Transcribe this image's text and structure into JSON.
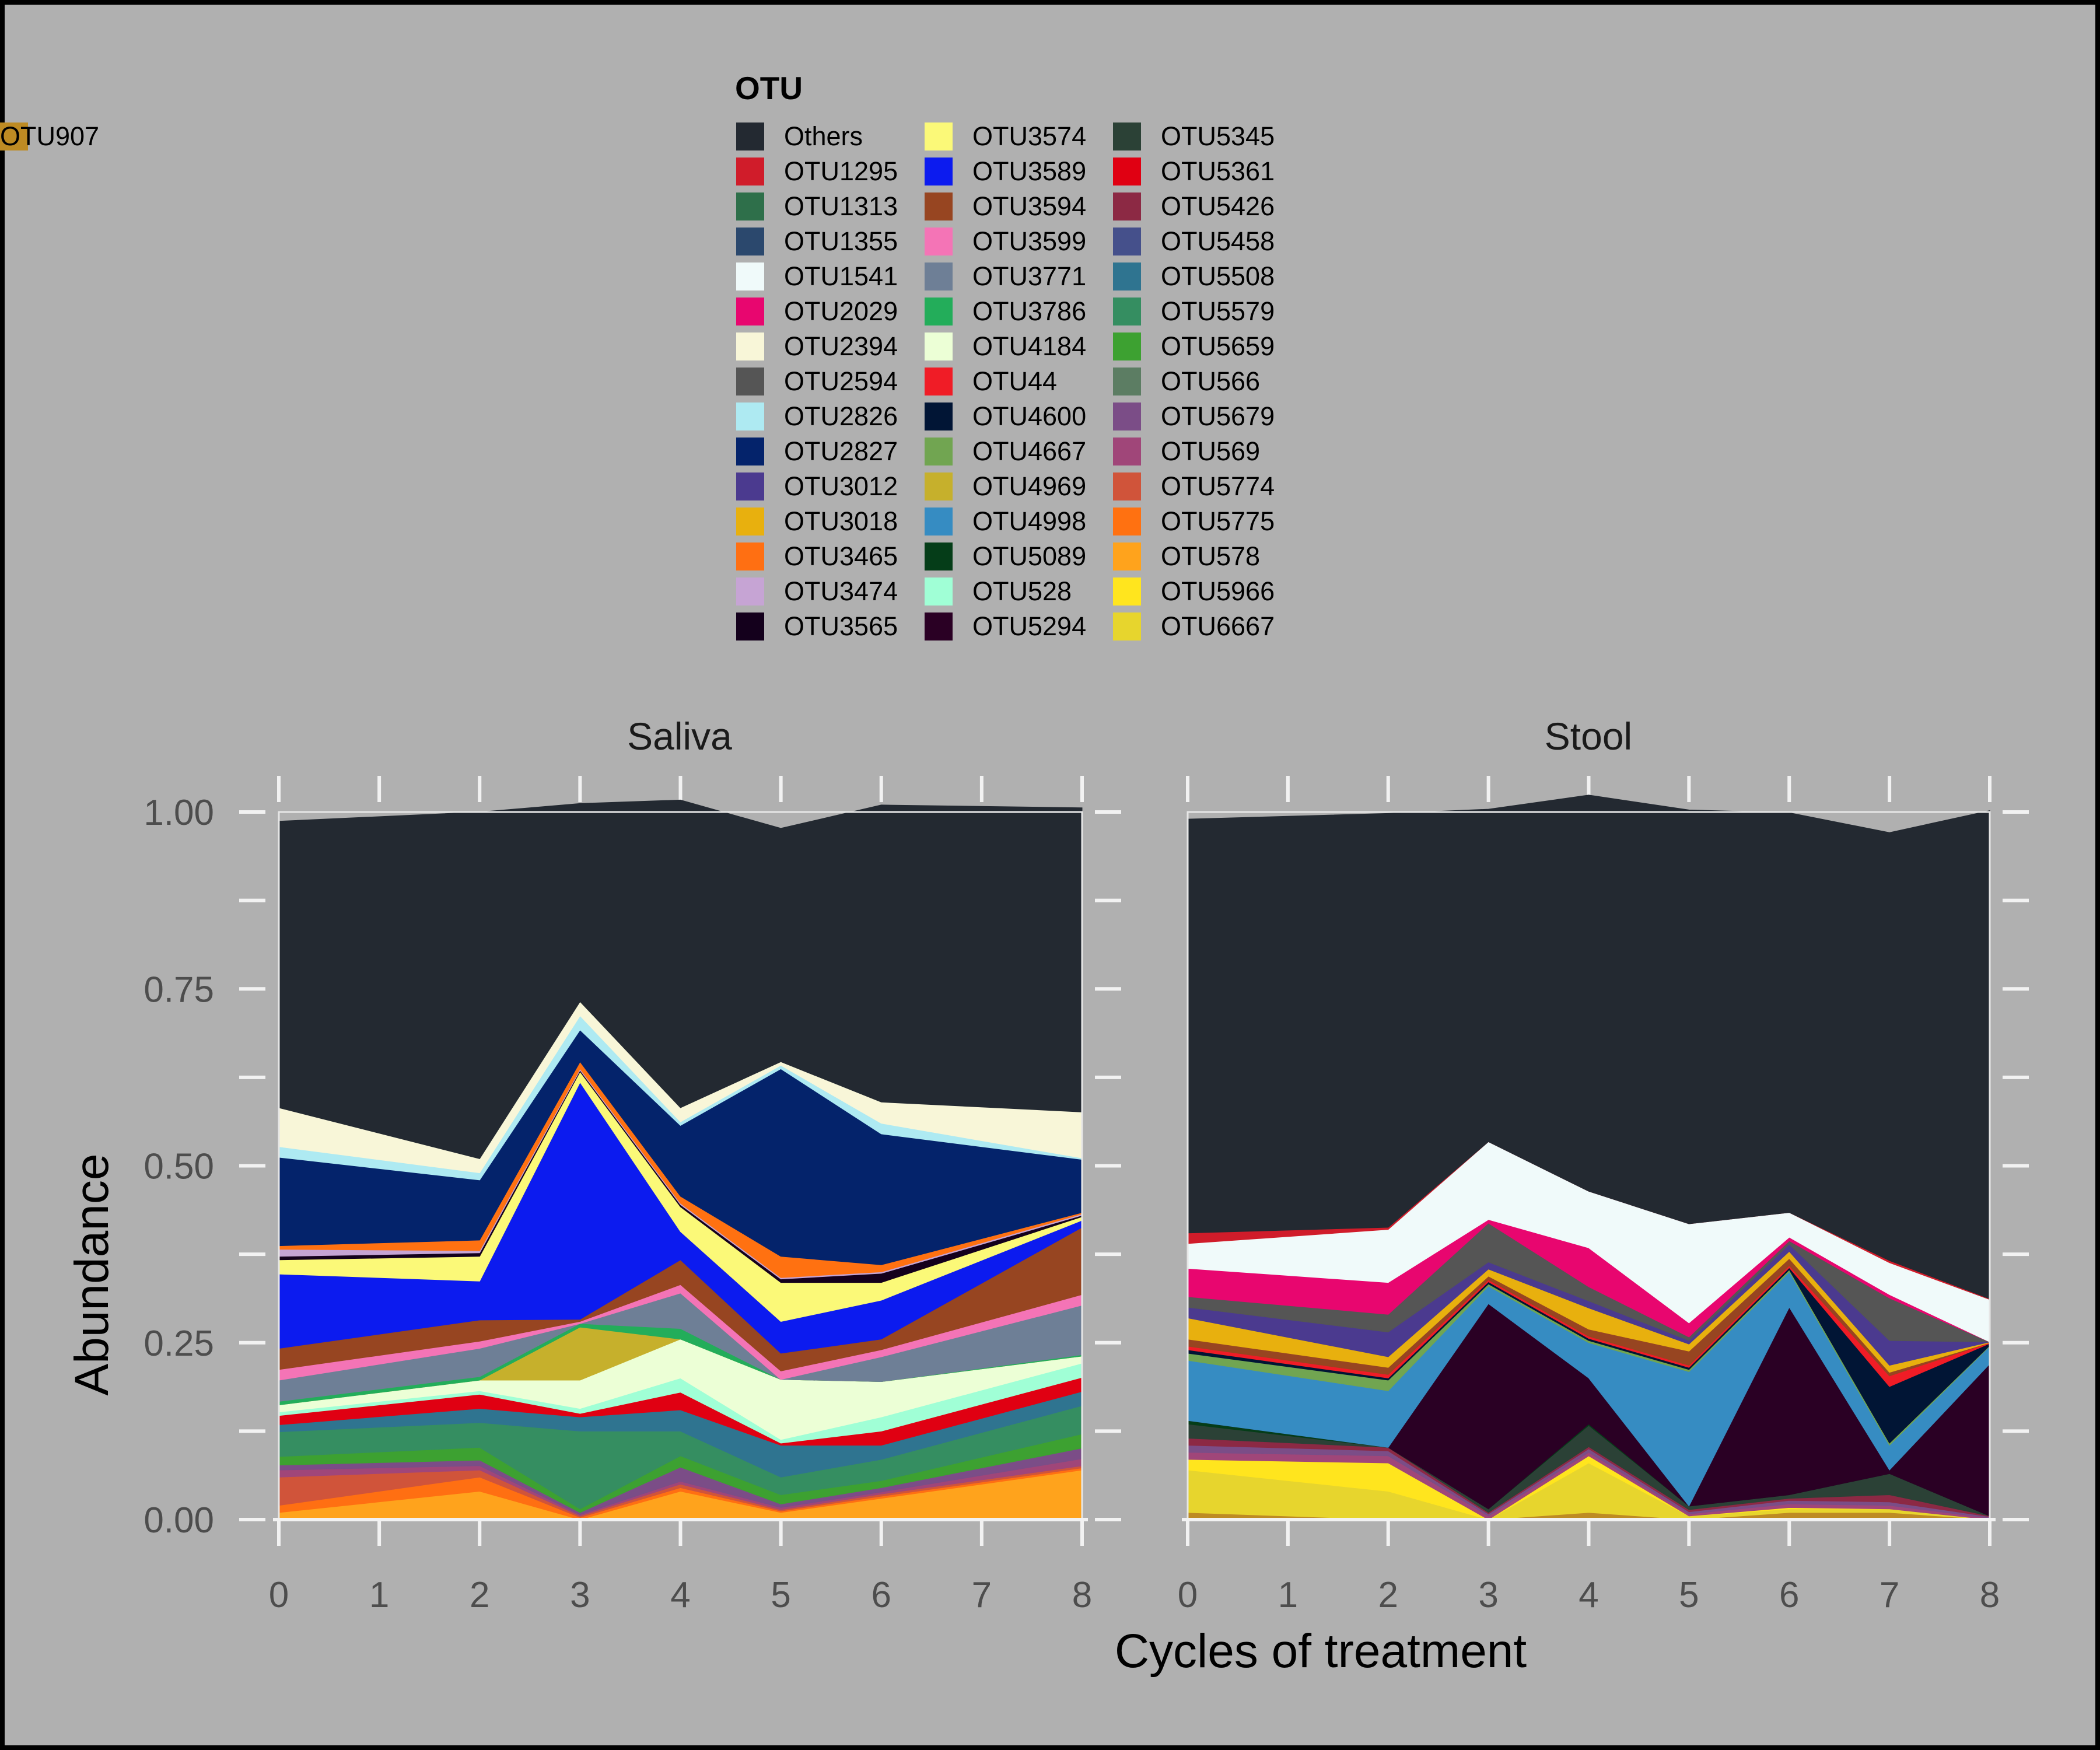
{
  "chart_data": {
    "type": "area",
    "stacked": true,
    "xlabel": "Cycles of treatment",
    "ylabel": "Abundance",
    "ylim": [
      0,
      1
    ],
    "yticks": [
      "0.00",
      "0.25",
      "0.50",
      "0.75",
      "1.00"
    ],
    "xticks": [
      "0",
      "1",
      "2",
      "3",
      "4",
      "5",
      "6",
      "7",
      "8"
    ],
    "background": "#b0b0b0",
    "grid": false,
    "legend": {
      "title": "OTU",
      "placement": "top",
      "entries": [
        {
          "name": "Others",
          "color": "#232931"
        },
        {
          "name": "OTU1295",
          "color": "#d01c2a"
        },
        {
          "name": "OTU1313",
          "color": "#2e6f4a"
        },
        {
          "name": "OTU1355",
          "color": "#2b486d"
        },
        {
          "name": "OTU1541",
          "color": "#f0fafa"
        },
        {
          "name": "OTU2029",
          "color": "#e8066f"
        },
        {
          "name": "OTU2394",
          "color": "#f8f6d8"
        },
        {
          "name": "OTU2594",
          "color": "#555555"
        },
        {
          "name": "OTU2826",
          "color": "#aeeaf2"
        },
        {
          "name": "OTU2827",
          "color": "#04236b"
        },
        {
          "name": "OTU3012",
          "color": "#4b3a8f"
        },
        {
          "name": "OTU3018",
          "color": "#e8b00e"
        },
        {
          "name": "OTU3465",
          "color": "#ff6f12"
        },
        {
          "name": "OTU3474",
          "color": "#c6a4d4"
        },
        {
          "name": "OTU3565",
          "color": "#14001c"
        },
        {
          "name": "OTU3574",
          "color": "#fbf978"
        },
        {
          "name": "OTU3589",
          "color": "#0c1bef"
        },
        {
          "name": "OTU3594",
          "color": "#974521"
        },
        {
          "name": "OTU3599",
          "color": "#f474b6"
        },
        {
          "name": "OTU3771",
          "color": "#6e7f96"
        },
        {
          "name": "OTU3786",
          "color": "#23ad5a"
        },
        {
          "name": "OTU4184",
          "color": "#ecffd6"
        },
        {
          "name": "OTU44",
          "color": "#f01c26"
        },
        {
          "name": "OTU4600",
          "color": "#011535"
        },
        {
          "name": "OTU4667",
          "color": "#71a551"
        },
        {
          "name": "OTU4969",
          "color": "#c6b02c"
        },
        {
          "name": "OTU4998",
          "color": "#368cc2"
        },
        {
          "name": "OTU5089",
          "color": "#053d18"
        },
        {
          "name": "OTU528",
          "color": "#a0ffd6"
        },
        {
          "name": "OTU5294",
          "color": "#2a0024"
        },
        {
          "name": "OTU5345",
          "color": "#2b4136"
        },
        {
          "name": "OTU5361",
          "color": "#e00012"
        },
        {
          "name": "OTU5426",
          "color": "#8c2944"
        },
        {
          "name": "OTU5458",
          "color": "#45508b"
        },
        {
          "name": "OTU5508",
          "color": "#2f7490"
        },
        {
          "name": "OTU5579",
          "color": "#358e61"
        },
        {
          "name": "OTU5659",
          "color": "#3da131"
        },
        {
          "name": "OTU566",
          "color": "#5c7d63"
        },
        {
          "name": "OTU5679",
          "color": "#7b4d87"
        },
        {
          "name": "OTU569",
          "color": "#a04679"
        },
        {
          "name": "OTU5774",
          "color": "#d0543a"
        },
        {
          "name": "OTU5775",
          "color": "#ff7111"
        },
        {
          "name": "OTU578",
          "color": "#ffa31c"
        },
        {
          "name": "OTU5966",
          "color": "#ffe51e"
        },
        {
          "name": "OTU6667",
          "color": "#e7d52d"
        },
        {
          "name": "OTU907",
          "color": "#be8b23"
        }
      ]
    },
    "panels": [
      {
        "name": "Saliva",
        "x": [
          0,
          2,
          3,
          4,
          5,
          6,
          8
        ],
        "stack": [
          {
            "otu": "OTU578",
            "values": [
              0.01,
              0.04,
              0.0,
              0.04,
              0.01,
              0.03,
              0.07
            ]
          },
          {
            "otu": "OTU3465",
            "values": [
              0.01,
              0.02,
              0.003,
              0.005,
              0.002,
              0.003,
              0.003
            ]
          },
          {
            "otu": "OTU5774",
            "values": [
              0.04,
              0.01,
              0.002,
              0.005,
              0.002,
              0.003,
              0.003
            ]
          },
          {
            "otu": "OTU569",
            "values": [
              0.01,
              0.006,
              0.002,
              0.004,
              0.003,
              0.003,
              0.01
            ]
          },
          {
            "otu": "OTU5679",
            "values": [
              0.007,
              0.008,
              0.003,
              0.02,
              0.005,
              0.006,
              0.015
            ]
          },
          {
            "otu": "OTU5659",
            "values": [
              0.012,
              0.018,
              0.005,
              0.016,
              0.013,
              0.01,
              0.02
            ]
          },
          {
            "otu": "OTU5579",
            "values": [
              0.035,
              0.035,
              0.11,
              0.035,
              0.025,
              0.03,
              0.04
            ]
          },
          {
            "otu": "OTU5508",
            "values": [
              0.01,
              0.02,
              0.02,
              0.03,
              0.045,
              0.02,
              0.02
            ]
          },
          {
            "otu": "OTU5361",
            "values": [
              0.013,
              0.02,
              0.005,
              0.025,
              0.003,
              0.02,
              0.02
            ]
          },
          {
            "otu": "OTU528",
            "values": [
              0.005,
              0.005,
              0.007,
              0.02,
              0.005,
              0.02,
              0.02
            ]
          },
          {
            "otu": "OTU4184",
            "values": [
              0.01,
              0.015,
              0.04,
              0.055,
              0.085,
              0.05,
              0.01
            ]
          },
          {
            "otu": "OTU4969",
            "values": [
              0.0,
              0.0,
              0.075,
              0.0,
              0.0,
              0.0,
              0.0
            ]
          },
          {
            "otu": "OTU3786",
            "values": [
              0.005,
              0.005,
              0.005,
              0.015,
              0.0,
              0.0,
              0.002
            ]
          },
          {
            "otu": "OTU3771",
            "values": [
              0.03,
              0.04,
              0.0,
              0.05,
              0.0,
              0.035,
              0.07
            ]
          },
          {
            "otu": "OTU3599",
            "values": [
              0.015,
              0.01,
              0.003,
              0.012,
              0.012,
              0.01,
              0.015
            ]
          },
          {
            "otu": "OTU3594",
            "values": [
              0.03,
              0.03,
              0.003,
              0.035,
              0.025,
              0.015,
              0.095
            ]
          },
          {
            "otu": "OTU3589",
            "values": [
              0.105,
              0.055,
              0.335,
              0.04,
              0.045,
              0.055,
              0.01
            ]
          },
          {
            "otu": "OTU3574",
            "values": [
              0.02,
              0.035,
              0.015,
              0.035,
              0.055,
              0.025,
              0.005
            ]
          },
          {
            "otu": "OTU3565",
            "values": [
              0.005,
              0.005,
              0.002,
              0.003,
              0.005,
              0.013,
              0.002
            ]
          },
          {
            "otu": "OTU3474",
            "values": [
              0.01,
              0.003,
              0.002,
              0.002,
              0.002,
              0.002,
              0.002
            ]
          },
          {
            "otu": "OTU5775",
            "values": [
              0.005,
              0.015,
              0.01,
              0.01,
              0.03,
              0.01,
              0.002
            ]
          },
          {
            "otu": "OTU2827",
            "values": [
              0.125,
              0.085,
              0.045,
              0.1,
              0.265,
              0.185,
              0.075
            ]
          },
          {
            "otu": "OTU2826",
            "values": [
              0.015,
              0.01,
              0.02,
              0.005,
              0.005,
              0.015,
              0.002
            ]
          },
          {
            "otu": "OTU2394",
            "values": [
              0.055,
              0.02,
              0.02,
              0.02,
              0.005,
              0.03,
              0.065
            ]
          },
          {
            "otu": "Others",
            "values": [
              0.405,
              0.49,
              0.28,
              0.435,
              0.33,
              0.42,
              0.43
            ]
          }
        ]
      },
      {
        "name": "Stool",
        "x": [
          0,
          2,
          3,
          4,
          5,
          6,
          7,
          8
        ],
        "stack": [
          {
            "otu": "OTU907",
            "values": [
              0.01,
              0.0,
              0.0,
              0.01,
              0.0,
              0.01,
              0.01,
              0.0
            ]
          },
          {
            "otu": "OTU6667",
            "values": [
              0.06,
              0.04,
              0.0,
              0.07,
              0.005,
              0.005,
              0.005,
              0.0
            ]
          },
          {
            "otu": "OTU5966",
            "values": [
              0.015,
              0.04,
              0.0,
              0.01,
              0.0,
              0.002,
              0.0,
              0.0
            ]
          },
          {
            "otu": "OTU569",
            "values": [
              0.01,
              0.01,
              0.005,
              0.005,
              0.003,
              0.005,
              0.005,
              0.002
            ]
          },
          {
            "otu": "OTU5679",
            "values": [
              0.01,
              0.007,
              0.003,
              0.005,
              0.003,
              0.005,
              0.005,
              0.002
            ]
          },
          {
            "otu": "OTU5426",
            "values": [
              0.01,
              0.005,
              0.002,
              0.003,
              0.003,
              0.003,
              0.01,
              0.001
            ]
          },
          {
            "otu": "OTU5345",
            "values": [
              0.02,
              0.0,
              0.005,
              0.03,
              0.005,
              0.005,
              0.03,
              0.0
            ]
          },
          {
            "otu": "OTU5089",
            "values": [
              0.005,
              0.0,
              0.0,
              0.002,
              0.0,
              0.0,
              0.0,
              0.0
            ]
          },
          {
            "otu": "OTU5294",
            "values": [
              0.0,
              0.0,
              0.29,
              0.065,
              0.0,
              0.265,
              0.005,
              0.215
            ]
          },
          {
            "otu": "OTU4998",
            "values": [
              0.085,
              0.08,
              0.025,
              0.05,
              0.19,
              0.05,
              0.035,
              0.025
            ]
          },
          {
            "otu": "OTU4667",
            "values": [
              0.01,
              0.015,
              0.003,
              0.003,
              0.003,
              0.003,
              0.003,
              0.001
            ]
          },
          {
            "otu": "OTU4600",
            "values": [
              0.005,
              0.003,
              0.003,
              0.003,
              0.003,
              0.003,
              0.08,
              0.003
            ]
          },
          {
            "otu": "OTU44",
            "values": [
              0.005,
              0.005,
              0.003,
              0.003,
              0.003,
              0.003,
              0.015,
              0.001
            ]
          },
          {
            "otu": "OTU3594",
            "values": [
              0.01,
              0.01,
              0.005,
              0.01,
              0.02,
              0.01,
              0.005,
              0.0
            ]
          },
          {
            "otu": "OTU3018",
            "values": [
              0.03,
              0.015,
              0.01,
              0.03,
              0.01,
              0.01,
              0.01,
              0.001
            ]
          },
          {
            "otu": "OTU3012",
            "values": [
              0.015,
              0.035,
              0.01,
              0.01,
              0.005,
              0.01,
              0.035,
              0.0
            ]
          },
          {
            "otu": "OTU2594",
            "values": [
              0.015,
              0.025,
              0.055,
              0.02,
              0.005,
              0.005,
              0.06,
              0.0
            ]
          },
          {
            "otu": "OTU2029",
            "values": [
              0.04,
              0.045,
              0.005,
              0.055,
              0.02,
              0.005,
              0.005,
              0.0
            ]
          },
          {
            "otu": "OTU1541",
            "values": [
              0.035,
              0.075,
              0.11,
              0.08,
              0.14,
              0.035,
              0.045,
              0.06
            ]
          },
          {
            "otu": "OTU1295",
            "values": [
              0.015,
              0.003,
              0.0,
              0.0,
              0.0,
              0.0,
              0.003,
              0.001
            ]
          },
          {
            "otu": "Others",
            "values": [
              0.585,
              0.585,
              0.47,
              0.56,
              0.585,
              0.565,
              0.605,
              0.69
            ]
          }
        ]
      }
    ]
  }
}
